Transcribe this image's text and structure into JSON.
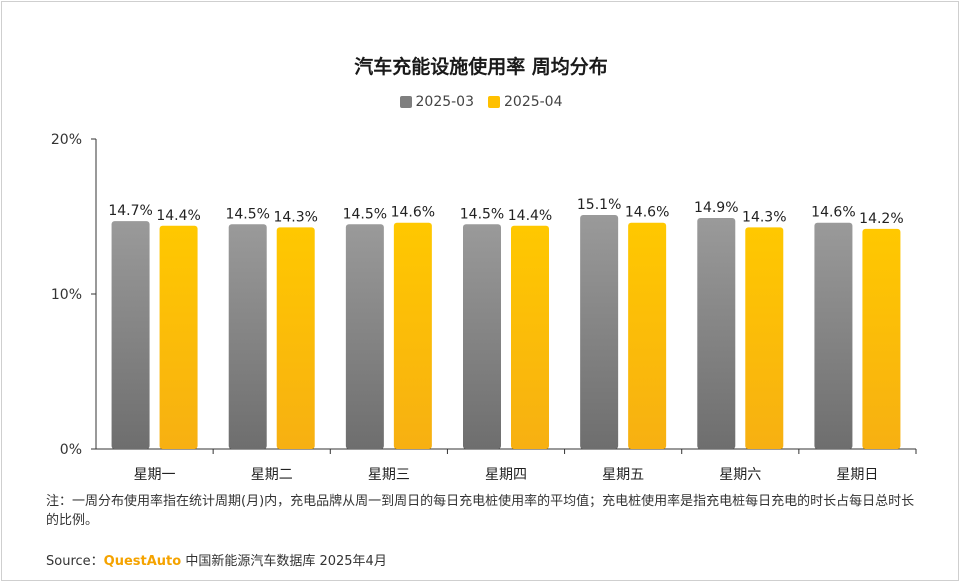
{
  "chart_data": {
    "type": "bar",
    "title": "汽车充能设施使用率 周均分布",
    "categories": [
      "星期一",
      "星期二",
      "星期三",
      "星期四",
      "星期五",
      "星期六",
      "星期日"
    ],
    "series": [
      {
        "name": "2025-03",
        "values": [
          14.7,
          14.5,
          14.5,
          14.5,
          15.1,
          14.9,
          14.6
        ],
        "labels": [
          "14.7%",
          "14.5%",
          "14.5%",
          "14.5%",
          "15.1%",
          "14.9%",
          "14.6%"
        ],
        "color": "#8c8c8c"
      },
      {
        "name": "2025-04",
        "values": [
          14.4,
          14.3,
          14.6,
          14.4,
          14.6,
          14.3,
          14.2
        ],
        "labels": [
          "14.4%",
          "14.3%",
          "14.6%",
          "14.4%",
          "14.6%",
          "14.3%",
          "14.2%"
        ],
        "color": "#ffc000"
      }
    ],
    "ylim": [
      0,
      20
    ],
    "yticks": [
      0,
      10,
      20
    ],
    "ytick_labels": [
      "0%",
      "10%",
      "20%"
    ],
    "xlabel": "",
    "ylabel": "",
    "legend": "top-center",
    "grid": false
  },
  "note": "注：一周分布使用率指在统计周期(月)内，充电品牌从周一到周日的每日充电桩使用率的平均值；充电桩使用率是指充电桩每日充电的时长占每日总时长的比例。",
  "source": {
    "prefix": "Source：",
    "brand": "QuestAuto",
    "text": " 中国新能源汽车数据库 2025年4月"
  },
  "colors": {
    "series1": "#8c8c8c",
    "series2": "#ffc000",
    "brand": "#f5a300"
  }
}
